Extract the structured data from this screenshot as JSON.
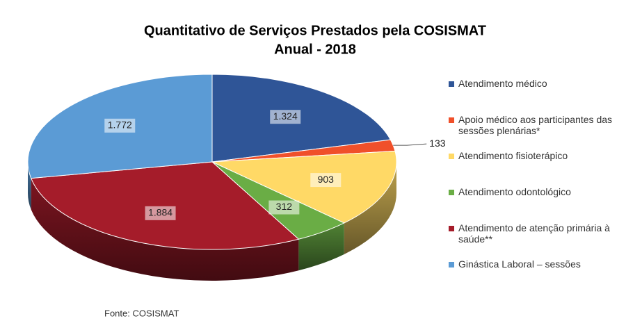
{
  "chart_data": {
    "type": "pie",
    "title": "Quantitativo de Serviços Prestados pela COSISMAT",
    "subtitle": "Anual - 2018",
    "categories": [
      "Atendimento médico",
      "Apoio médico aos participantes das sessões plenárias*",
      "Atendimento fisioterápico",
      "Atendimento odontológico",
      "Atendimento de atenção primária à saúde**",
      "Ginástica Laboral – sessões"
    ],
    "values": [
      1324,
      133,
      903,
      312,
      1884,
      1772
    ],
    "value_labels": [
      "1.324",
      "133",
      "903",
      "312",
      "1.884",
      "1.772"
    ],
    "colors": [
      "#2f5597",
      "#f0502a",
      "#ffd966",
      "#6aad45",
      "#a51c2a",
      "#5b9bd5"
    ],
    "legend": "right",
    "source": "Fonte: COSISMAT"
  }
}
